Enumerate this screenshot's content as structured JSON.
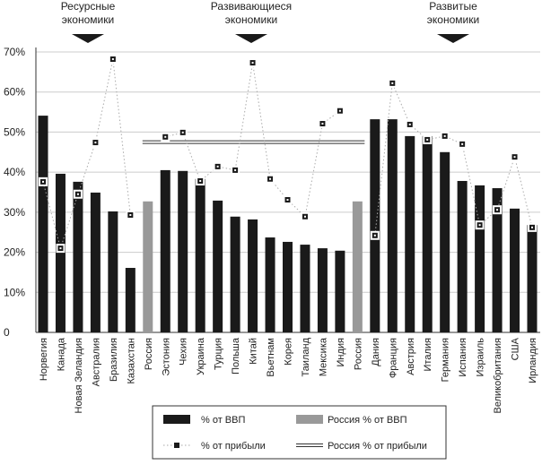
{
  "chart_data": {
    "type": "bar",
    "categories": [
      "Норвегия",
      "Канада",
      "Новая Зеландия",
      "Австралия",
      "Бразилия",
      "Казахстан",
      "Россия",
      "Эстония",
      "Чехия",
      "Украина",
      "Турция",
      "Польша",
      "Китай",
      "Вьетнам",
      "Корея",
      "Таиланд",
      "Мексика",
      "Индия",
      "Россия",
      "Дания",
      "Франция",
      "Австрия",
      "Италия",
      "Германия",
      "Испания",
      "Израиль",
      "Великобритания",
      "США",
      "Ирландия"
    ],
    "series": [
      {
        "name": "% от ВВП",
        "color": "#1a1a1a",
        "kind": "bar",
        "values": [
          54.1,
          39.6,
          37.6,
          34.9,
          30.2,
          16.1,
          null,
          40.5,
          40.3,
          38.3,
          32.9,
          28.9,
          28.2,
          23.7,
          22.6,
          21.9,
          21.0,
          20.4,
          null,
          53.2,
          53.2,
          49.0,
          49.0,
          45.0,
          37.8,
          36.7,
          36.0,
          30.9,
          26.8
        ]
      },
      {
        "name": "Россия % от ВВП",
        "color": "#999999",
        "kind": "bar",
        "values": [
          null,
          null,
          null,
          null,
          null,
          null,
          32.7,
          null,
          null,
          null,
          null,
          null,
          null,
          null,
          null,
          null,
          null,
          null,
          32.7,
          null,
          null,
          null,
          null,
          null,
          null,
          null,
          null,
          null,
          null
        ]
      },
      {
        "name": "% от прибыли",
        "color": "#1a1a1a",
        "kind": "marker",
        "values": [
          37.6,
          21.0,
          34.5,
          47.4,
          68.2,
          29.3,
          null,
          48.8,
          49.9,
          37.8,
          41.4,
          40.5,
          67.3,
          38.3,
          33.1,
          28.9,
          52.1,
          55.3,
          null,
          24.2,
          62.2,
          51.9,
          48.1,
          49.0,
          47.0,
          26.8,
          30.6,
          43.8,
          26.2
        ]
      }
    ],
    "reference_line": {
      "name": "Россия % от прибыли",
      "value": 47.5
    },
    "annotations": [
      [
        "Ресурсные",
        "экономики"
      ],
      [
        "Развивающиеся",
        "экономики"
      ],
      [
        "Развитые",
        "экономики"
      ]
    ],
    "ylim": [
      0,
      70
    ],
    "yticks": [
      0,
      {
        "value": 10,
        "label": "10%"
      },
      {
        "value": 20,
        "label": "20%"
      },
      {
        "value": 30,
        "label": "30%"
      },
      {
        "value": 40,
        "label": "40%"
      },
      {
        "value": 50,
        "label": "50%"
      },
      {
        "value": 60,
        "label": "60%"
      },
      {
        "value": 70,
        "label": "70%"
      }
    ],
    "grid": true
  }
}
